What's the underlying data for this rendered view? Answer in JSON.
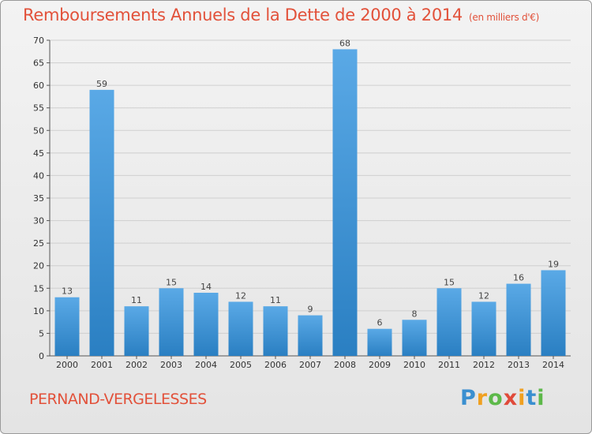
{
  "chart_data": {
    "type": "bar",
    "title": "Remboursements Annuels de la Dette de 2000 à 2014",
    "unit_note": "(en milliers d'€)",
    "categories": [
      "2000",
      "2001",
      "2002",
      "2003",
      "2004",
      "2005",
      "2006",
      "2007",
      "2008",
      "2009",
      "2010",
      "2011",
      "2012",
      "2013",
      "2014"
    ],
    "values": [
      13,
      59,
      11,
      15,
      14,
      12,
      11,
      9,
      68,
      6,
      8,
      15,
      12,
      16,
      19
    ],
    "ylim": [
      0,
      70
    ],
    "yticks": [
      0,
      5,
      10,
      15,
      20,
      25,
      30,
      35,
      40,
      45,
      50,
      55,
      60,
      65,
      70
    ],
    "grid": true,
    "bar_color_top": "#5aa9e6",
    "bar_color_bottom": "#2a7fc2"
  },
  "commune": "PERNAND-VERGELESSES",
  "logo": {
    "letters": [
      "P",
      "r",
      "o",
      "x",
      "i",
      "t",
      "i"
    ],
    "colors": [
      "#3a8fd0",
      "#f0a020",
      "#5db94a",
      "#e04a3a",
      "#f0a020",
      "#3a8fd0",
      "#5db94a"
    ]
  },
  "colors": {
    "title": "#e2513a",
    "background": "#ebebeb"
  }
}
